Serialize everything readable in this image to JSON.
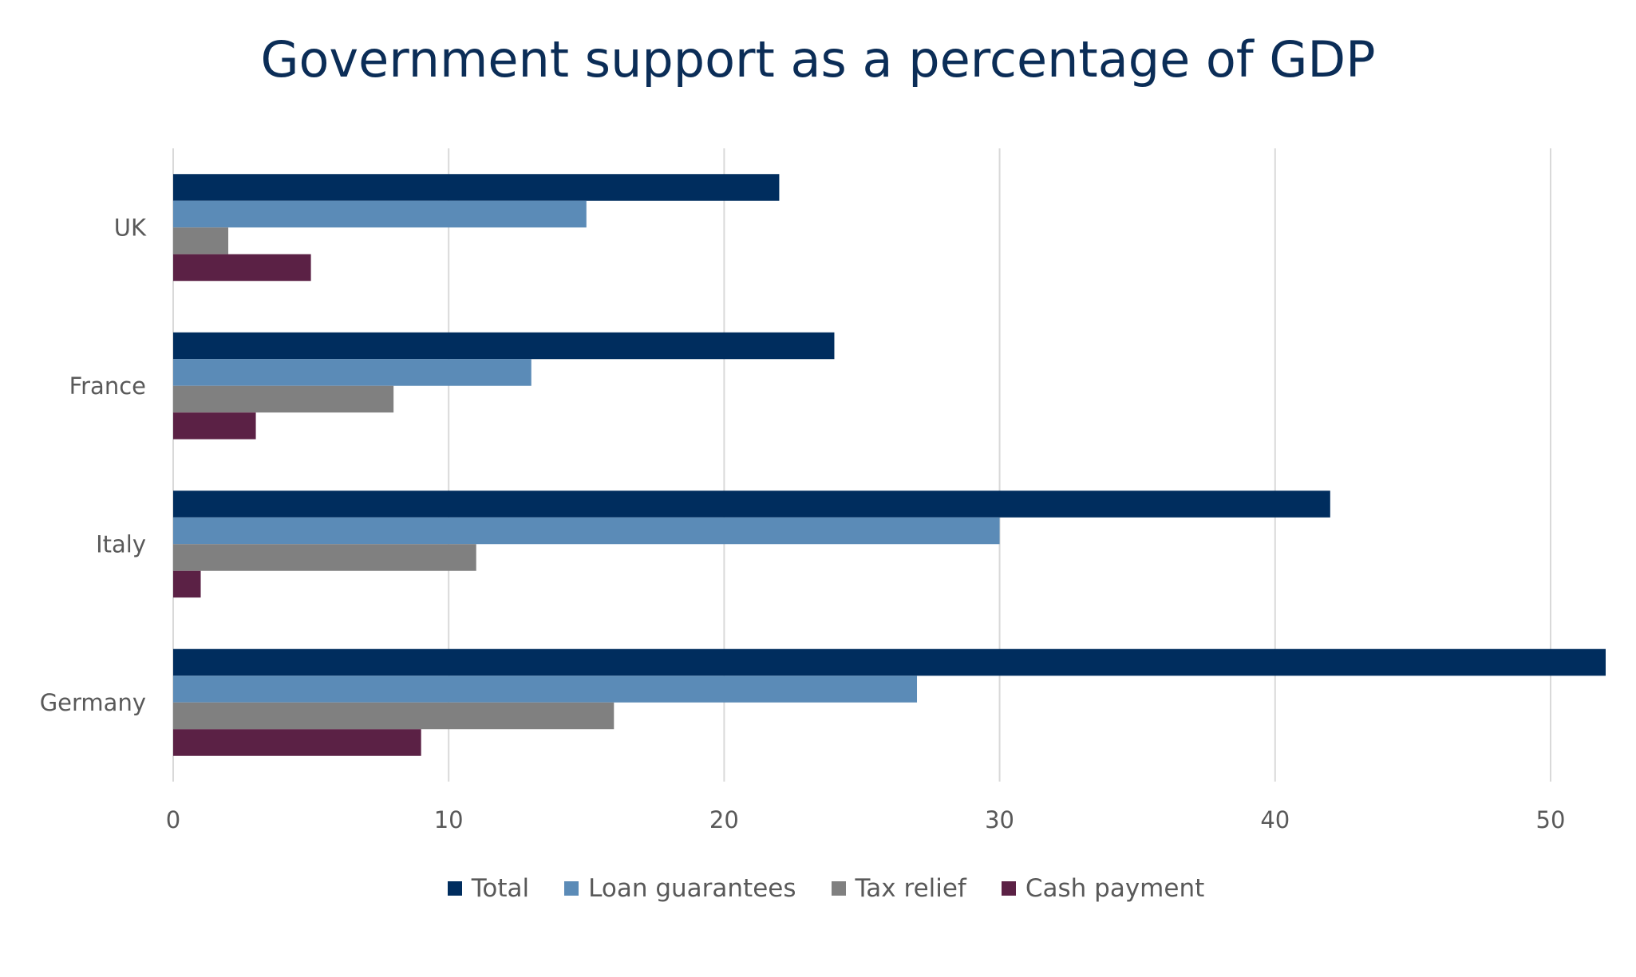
{
  "chart_data": {
    "type": "bar",
    "orientation": "horizontal",
    "title": "Government support as a percentage of GDP",
    "xlabel": "",
    "ylabel": "",
    "categories": [
      "UK",
      "France",
      "Italy",
      "Germany"
    ],
    "series": [
      {
        "name": "Total",
        "color": "#002d5e",
        "values": [
          22,
          24,
          42,
          52
        ]
      },
      {
        "name": "Loan guarantees",
        "color": "#5b8bb7",
        "values": [
          15,
          13,
          30,
          27
        ]
      },
      {
        "name": "Tax relief",
        "color": "#808080",
        "values": [
          2,
          8,
          11,
          16
        ]
      },
      {
        "name": "Cash payment",
        "color": "#5b2145",
        "values": [
          5,
          3,
          1,
          9
        ]
      }
    ],
    "xlim": [
      0,
      52
    ],
    "x_ticks": [
      0,
      10,
      20,
      30,
      40,
      50
    ],
    "grid": true,
    "legend_position": "bottom"
  }
}
